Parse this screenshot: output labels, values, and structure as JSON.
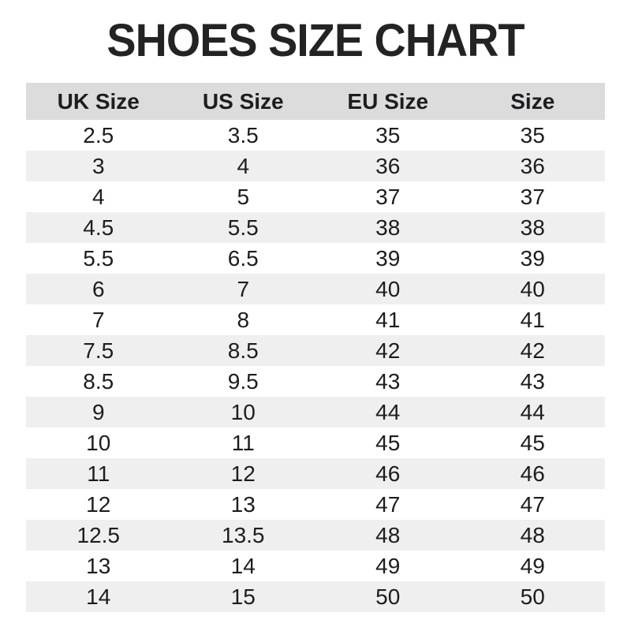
{
  "title": "SHOES SIZE CHART",
  "chart_data": {
    "type": "table",
    "title": "SHOES SIZE CHART",
    "columns": [
      "UK Size",
      "US Size",
      "EU Size",
      "Size"
    ],
    "rows": [
      [
        "2.5",
        "3.5",
        "35",
        "35"
      ],
      [
        "3",
        "4",
        "36",
        "36"
      ],
      [
        "4",
        "5",
        "37",
        "37"
      ],
      [
        "4.5",
        "5.5",
        "38",
        "38"
      ],
      [
        "5.5",
        "6.5",
        "39",
        "39"
      ],
      [
        "6",
        "7",
        "40",
        "40"
      ],
      [
        "7",
        "8",
        "41",
        "41"
      ],
      [
        "7.5",
        "8.5",
        "42",
        "42"
      ],
      [
        "8.5",
        "9.5",
        "43",
        "43"
      ],
      [
        "9",
        "10",
        "44",
        "44"
      ],
      [
        "10",
        "11",
        "45",
        "45"
      ],
      [
        "11",
        "12",
        "46",
        "46"
      ],
      [
        "12",
        "13",
        "47",
        "47"
      ],
      [
        "12.5",
        "13.5",
        "48",
        "48"
      ],
      [
        "13",
        "14",
        "49",
        "49"
      ],
      [
        "14",
        "15",
        "50",
        "50"
      ]
    ],
    "layout": {
      "legend": "none",
      "grid": "off",
      "row_striping": "alternate"
    }
  },
  "colors": {
    "header_bg": "#dcdcdc",
    "alt_row_bg": "#efefef",
    "row_bg": "#ffffff",
    "text": "#1d1d1f",
    "title_text": "#232323",
    "page_bg": "#ffffff"
  }
}
